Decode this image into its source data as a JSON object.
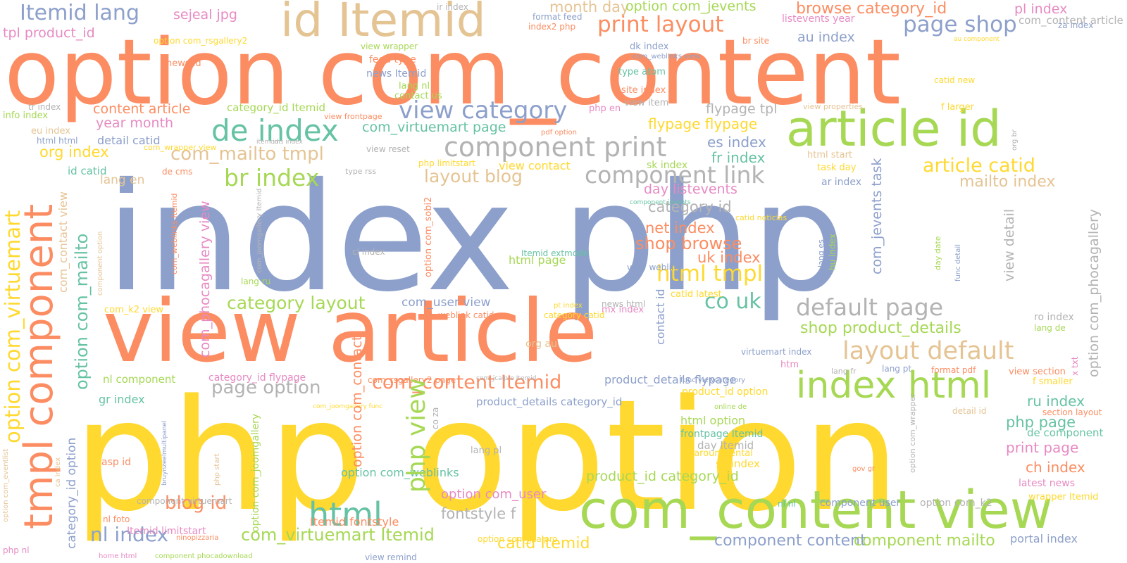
{
  "palette": {
    "orange": "#fc8d62",
    "blue": "#8da0cb",
    "yellow": "#ffd92f",
    "green": "#a6d854",
    "teal": "#66c2a5",
    "tan": "#e5c494",
    "gray": "#b3b3b3",
    "pink": "#e78ac3"
  },
  "words": [
    {
      "text": "index php"
    },
    {
      "text": "php option"
    },
    {
      "text": "option com_content"
    },
    {
      "text": "view article"
    },
    {
      "text": "com_content view"
    },
    {
      "text": "article id"
    },
    {
      "text": "id Itemid"
    },
    {
      "text": "tmpl component"
    },
    {
      "text": "index html"
    },
    {
      "text": "option com_virtuemart"
    },
    {
      "text": "component print"
    },
    {
      "text": "de index"
    },
    {
      "text": "view category"
    },
    {
      "text": "component link"
    },
    {
      "text": "default page"
    },
    {
      "text": "layout default"
    },
    {
      "text": "print layout"
    },
    {
      "text": "page shop"
    },
    {
      "text": "html"
    },
    {
      "text": "php view"
    },
    {
      "text": "com_content Itemid"
    },
    {
      "text": "br index"
    },
    {
      "text": "html tmpl"
    },
    {
      "text": "option com_mailto"
    },
    {
      "text": "article catid"
    },
    {
      "text": "Itemid lang"
    },
    {
      "text": "shop product_details"
    },
    {
      "text": "nl index"
    },
    {
      "text": "com_virtuemart Itemid"
    },
    {
      "text": "page option"
    },
    {
      "text": "option com_contact"
    },
    {
      "text": "com_mailto tmpl"
    },
    {
      "text": "blog id"
    },
    {
      "text": "category layout"
    },
    {
      "text": "com_phocagallery view"
    },
    {
      "text": "co uk"
    },
    {
      "text": "component content"
    },
    {
      "text": "component mailto"
    },
    {
      "text": "browse category_id"
    },
    {
      "text": "layout blog"
    },
    {
      "text": "catid Itemid"
    },
    {
      "text": "shop browse"
    },
    {
      "text": "option com_phocagallery"
    },
    {
      "text": "com_jevents task"
    },
    {
      "text": "product_id category_id"
    },
    {
      "text": "category_id option"
    },
    {
      "text": "mailto index"
    },
    {
      "text": "month day"
    },
    {
      "text": "option com_jevents"
    },
    {
      "text": "fontstyle f"
    },
    {
      "text": "option com_user"
    },
    {
      "text": "com_virtuemart page"
    },
    {
      "text": "category id"
    },
    {
      "text": "net index"
    },
    {
      "text": "uk index"
    },
    {
      "text": "flypage flypage"
    },
    {
      "text": "view detail"
    },
    {
      "text": "day listevents"
    },
    {
      "text": "content article"
    },
    {
      "text": "year month"
    },
    {
      "text": "flypage tpl"
    },
    {
      "text": "org index"
    },
    {
      "text": "es index"
    },
    {
      "text": "fr index"
    },
    {
      "text": "php page"
    },
    {
      "text": "print page"
    },
    {
      "text": "ch index"
    },
    {
      "text": "ru index"
    },
    {
      "text": "pl index"
    },
    {
      "text": "au index"
    },
    {
      "text": "sejeal jpg"
    },
    {
      "text": "tpl product_id"
    },
    {
      "text": "com_contact view"
    },
    {
      "text": "html page"
    },
    {
      "text": "com_user view"
    },
    {
      "text": "html option"
    },
    {
      "text": "portal index"
    },
    {
      "text": "contact id"
    },
    {
      "text": "option com_weblinks"
    },
    {
      "text": "nl component"
    },
    {
      "text": "gr index"
    },
    {
      "text": "option com_joomgallery"
    },
    {
      "text": "category_id flypage"
    },
    {
      "text": "product_details flypage"
    },
    {
      "text": "product_details category_id"
    },
    {
      "text": "Itemid fontstyle"
    },
    {
      "text": "com_content article"
    },
    {
      "text": "listevents year"
    },
    {
      "text": "view contact"
    },
    {
      "text": "detail catid"
    },
    {
      "text": "lang en"
    },
    {
      "text": "id catid"
    },
    {
      "text": "category_id Itemid"
    },
    {
      "text": "news Itemid"
    },
    {
      "text": "sk index"
    },
    {
      "text": "day Itemid"
    },
    {
      "text": "se index"
    },
    {
      "text": "product_id option"
    },
    {
      "text": "frontpage Itemid"
    },
    {
      "text": "allaroundrental"
    },
    {
      "text": "de component"
    },
    {
      "text": "latest news"
    },
    {
      "text": "wrapper Itemid"
    },
    {
      "text": "com_k2 view"
    },
    {
      "text": "ar index"
    },
    {
      "text": "lang nl"
    },
    {
      "text": "contact us"
    },
    {
      "text": "feed type"
    },
    {
      "text": "news id"
    },
    {
      "text": "view wrapper"
    },
    {
      "text": "type atom"
    },
    {
      "text": "site index"
    },
    {
      "text": "view item"
    },
    {
      "text": "dk index"
    },
    {
      "text": "format feed"
    },
    {
      "text": "index2 php"
    },
    {
      "text": "ir index"
    },
    {
      "text": "option com_rsgallery2"
    },
    {
      "text": "br site"
    },
    {
      "text": "za index"
    },
    {
      "text": "catid new"
    },
    {
      "text": "f larger"
    },
    {
      "text": "view properties"
    },
    {
      "text": "html start"
    },
    {
      "text": "task day"
    },
    {
      "text": "eu index"
    },
    {
      "text": "info index"
    },
    {
      "text": "html html"
    },
    {
      "text": "tr index"
    },
    {
      "text": "php en"
    },
    {
      "text": "pdf option"
    },
    {
      "text": "view frontpage"
    },
    {
      "text": "catid latest"
    },
    {
      "text": "view weblink"
    },
    {
      "text": "Itemid extmode"
    },
    {
      "text": "lang ru"
    },
    {
      "text": "org au"
    },
    {
      "text": "com_wrapper view"
    },
    {
      "text": "de cms"
    },
    {
      "text": "type rss"
    },
    {
      "text": "view reset"
    },
    {
      "text": "php limitstart"
    },
    {
      "text": "option com_sobi2"
    },
    {
      "text": "cl index"
    },
    {
      "text": "mx index"
    },
    {
      "text": "ro index"
    },
    {
      "text": "lang de"
    },
    {
      "text": "x txt"
    },
    {
      "text": "f smaller"
    },
    {
      "text": "section layout"
    },
    {
      "text": "view section"
    },
    {
      "text": "format pdf"
    },
    {
      "text": "lang pt"
    },
    {
      "text": "lang fr"
    },
    {
      "text": "htm"
    },
    {
      "text": "virtuemart index"
    },
    {
      "text": "online de"
    },
    {
      "text": "func viewcategory"
    },
    {
      "text": "detail id"
    },
    {
      "text": "weblink catid"
    },
    {
      "text": "category catid"
    },
    {
      "text": "pt index"
    },
    {
      "text": "news html"
    },
    {
      "text": "lang pl"
    },
    {
      "text": "co za"
    },
    {
      "text": "nl nl"
    },
    {
      "text": "component user"
    },
    {
      "text": "option com_k2"
    },
    {
      "text": "gov gr"
    },
    {
      "text": "asp id"
    },
    {
      "text": "component virtuemart"
    },
    {
      "text": "nl foto"
    },
    {
      "text": "Itemid limitstart"
    },
    {
      "text": "ninopizzaria"
    },
    {
      "text": "php nl"
    },
    {
      "text": "home html"
    },
    {
      "text": "component phocadownload"
    },
    {
      "text": "view remind"
    },
    {
      "text": "option com_jcalpro"
    },
    {
      "text": "bruynzeelmultipanel"
    },
    {
      "text": "php start"
    },
    {
      "text": "com_rsgallery2 page"
    },
    {
      "text": "option com_eventlist"
    },
    {
      "text": "com_jcalpro Itemid"
    },
    {
      "text": "com_joomgallery func"
    },
    {
      "text": "ca index"
    },
    {
      "text": "hu index"
    },
    {
      "text": "lang es"
    },
    {
      "text": "day date"
    },
    {
      "text": "au component"
    },
    {
      "text": "com_weblinks view"
    },
    {
      "text": "component jevents"
    },
    {
      "text": "catid noticias"
    },
    {
      "text": "func detail"
    },
    {
      "text": "org br"
    },
    {
      "text": "item id"
    },
    {
      "text": "cms index"
    },
    {
      "text": "option com_wrapper"
    },
    {
      "text": "com_weblinks Itemid"
    },
    {
      "text": "com_joomgallery Itemid"
    },
    {
      "text": "component option"
    }
  ]
}
